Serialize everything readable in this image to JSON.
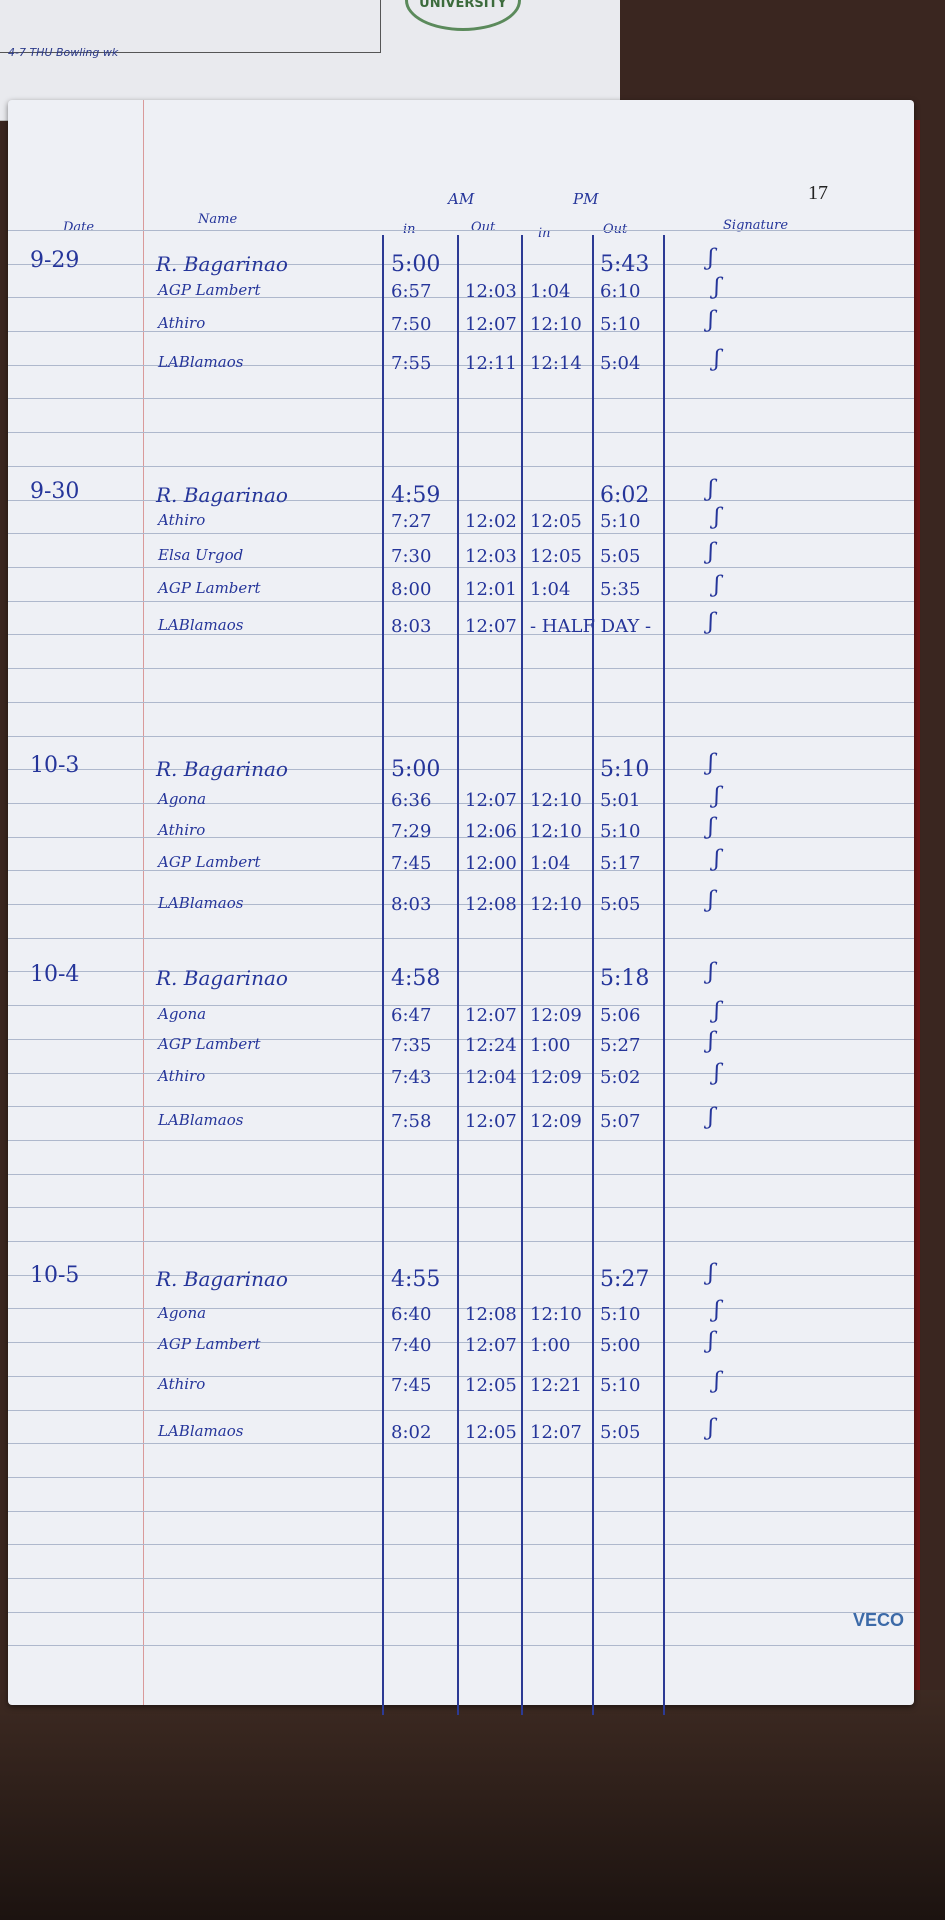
{
  "top_sheet": {
    "note": "4-7 THU Bowling wk",
    "seal_text": "UNIVERSITY"
  },
  "page_number": "17",
  "brand": "VECO",
  "header": {
    "am": "AM",
    "pm": "PM",
    "date": "Date",
    "name": "Name",
    "am_in": "in",
    "am_out": "Out",
    "pm_in": "in",
    "pm_out": "Out",
    "signature": "Signature"
  },
  "entries": [
    {
      "date": "9-29",
      "rows": [
        {
          "name": "R. Bagarinao",
          "am_in": "5:00",
          "am_out": "",
          "pm_in": "",
          "pm_out": "5:43"
        },
        {
          "name": "AGP Lambert",
          "am_in": "6:57",
          "am_out": "12:03",
          "pm_in": "1:04",
          "pm_out": "6:10"
        },
        {
          "name": "Athiro",
          "am_in": "7:50",
          "am_out": "12:07",
          "pm_in": "12:10",
          "pm_out": "5:10"
        },
        {
          "name": "LABlamaos",
          "am_in": "7:55",
          "am_out": "12:11",
          "pm_in": "12:14",
          "pm_out": "5:04"
        }
      ]
    },
    {
      "date": "9-30",
      "rows": [
        {
          "name": "R. Bagarinao",
          "am_in": "4:59",
          "am_out": "",
          "pm_in": "",
          "pm_out": "6:02"
        },
        {
          "name": "Athiro",
          "am_in": "7:27",
          "am_out": "12:02",
          "pm_in": "12:05",
          "pm_out": "5:10"
        },
        {
          "name": "Elsa Urgod",
          "am_in": "7:30",
          "am_out": "12:03",
          "pm_in": "12:05",
          "pm_out": "5:05"
        },
        {
          "name": "AGP Lambert",
          "am_in": "8:00",
          "am_out": "12:01",
          "pm_in": "1:04",
          "pm_out": "5:35"
        },
        {
          "name": "LABlamaos",
          "am_in": "8:03",
          "am_out": "12:07",
          "pm_in": "- HALF DAY -",
          "pm_out": ""
        }
      ]
    },
    {
      "date": "10-3",
      "rows": [
        {
          "name": "R. Bagarinao",
          "am_in": "5:00",
          "am_out": "",
          "pm_in": "",
          "pm_out": "5:10"
        },
        {
          "name": "Agona",
          "am_in": "6:36",
          "am_out": "12:07",
          "pm_in": "12:10",
          "pm_out": "5:01"
        },
        {
          "name": "Athiro",
          "am_in": "7:29",
          "am_out": "12:06",
          "pm_in": "12:10",
          "pm_out": "5:10"
        },
        {
          "name": "AGP Lambert",
          "am_in": "7:45",
          "am_out": "12:00",
          "pm_in": "1:04",
          "pm_out": "5:17"
        },
        {
          "name": "LABlamaos",
          "am_in": "8:03",
          "am_out": "12:08",
          "pm_in": "12:10",
          "pm_out": "5:05"
        }
      ]
    },
    {
      "date": "10-4",
      "rows": [
        {
          "name": "R. Bagarinao",
          "am_in": "4:58",
          "am_out": "",
          "pm_in": "",
          "pm_out": "5:18"
        },
        {
          "name": "Agona",
          "am_in": "6:47",
          "am_out": "12:07",
          "pm_in": "12:09",
          "pm_out": "5:06"
        },
        {
          "name": "AGP Lambert",
          "am_in": "7:35",
          "am_out": "12:24",
          "pm_in": "1:00",
          "pm_out": "5:27"
        },
        {
          "name": "Athiro",
          "am_in": "7:43",
          "am_out": "12:04",
          "pm_in": "12:09",
          "pm_out": "5:02"
        },
        {
          "name": "LABlamaos",
          "am_in": "7:58",
          "am_out": "12:07",
          "pm_in": "12:09",
          "pm_out": "5:07"
        }
      ]
    },
    {
      "date": "10-5",
      "rows": [
        {
          "name": "R. Bagarinao",
          "am_in": "4:55",
          "am_out": "",
          "pm_in": "",
          "pm_out": "5:27"
        },
        {
          "name": "Agona",
          "am_in": "6:40",
          "am_out": "12:08",
          "pm_in": "12:10",
          "pm_out": "5:10"
        },
        {
          "name": "AGP Lambert",
          "am_in": "7:40",
          "am_out": "12:07",
          "pm_in": "1:00",
          "pm_out": "5:00"
        },
        {
          "name": "Athiro",
          "am_in": "7:45",
          "am_out": "12:05",
          "pm_in": "12:21",
          "pm_out": "5:10"
        },
        {
          "name": "LABlamaos",
          "am_in": "8:02",
          "am_out": "12:05",
          "pm_in": "12:07",
          "pm_out": "5:05"
        }
      ]
    }
  ],
  "ink_color": "#25359a"
}
